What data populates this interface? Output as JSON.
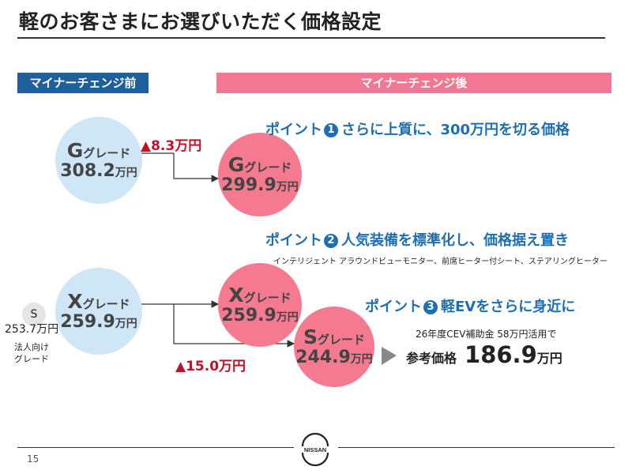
{
  "title": "軽のお客さまにお選びいただく価格設定",
  "header": {
    "before": "マイナーチェンジ前",
    "after": "マイナーチェンジ後"
  },
  "before": {
    "g": {
      "letter": "G",
      "grade": "グレード",
      "price": "308.2",
      "unit": "万円"
    },
    "x": {
      "letter": "X",
      "grade": "グレード",
      "price": "259.9",
      "unit": "万円"
    },
    "s": {
      "letter": "S",
      "price": "253.7万円",
      "note_line1": "法人向け",
      "note_line2": "グレード"
    }
  },
  "after": {
    "g": {
      "letter": "G",
      "grade": "グレード",
      "price": "299.9",
      "unit": "万円"
    },
    "x": {
      "letter": "X",
      "grade": "グレード",
      "price": "259.9",
      "unit": "万円"
    },
    "s": {
      "letter": "S",
      "grade": "グレード",
      "price": "244.9",
      "unit": "万円"
    }
  },
  "diffs": {
    "g": "▲8.3万円",
    "s": "▲15.0万円"
  },
  "points": [
    {
      "label": "ポイント",
      "num": "1",
      "text": "さらに上質に、300万円を切る価格"
    },
    {
      "label": "ポイント",
      "num": "2",
      "text": "人気装備を標準化し、価格据え置き"
    },
    {
      "label": "ポイント",
      "num": "3",
      "text": "軽EVをさらに身近に"
    }
  ],
  "point2_note": "インテリジェント アラウンドビューモニター、前席ヒーター付シート、ステアリングヒーター",
  "subsidy_note": "26年度CEV補助金 58万円活用で",
  "reference": {
    "label": "参考価格",
    "value": "186.9",
    "unit": "万円"
  },
  "logo_text": "NISSAN",
  "page_number": "15",
  "colors": {
    "blue_header": "#1f5f9a",
    "pink_header": "#f37792",
    "blue_circle": "#cfe6f7",
    "pink_circle": "#f57a90",
    "point_text": "#1f6fb0",
    "diff_red": "#c0102a"
  }
}
